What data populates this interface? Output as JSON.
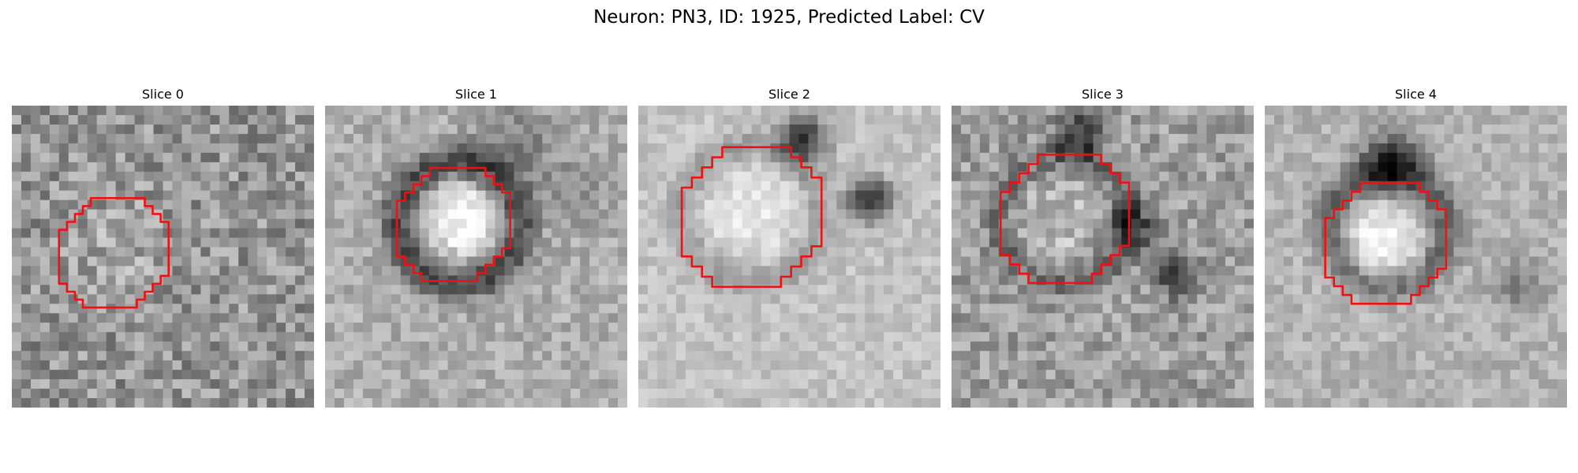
{
  "figure": {
    "title": "Neuron: PN3, ID: 1925, Predicted Label: CV"
  },
  "panels": [
    {
      "title": "Slice 0",
      "colormap": "gray",
      "contour_color": "#ee1111"
    },
    {
      "title": "Slice 1",
      "colormap": "gray",
      "contour_color": "#ee1111"
    },
    {
      "title": "Slice 2",
      "colormap": "gray",
      "contour_color": "#ee1111"
    },
    {
      "title": "Slice 3",
      "colormap": "gray",
      "contour_color": "#ee1111"
    },
    {
      "title": "Slice 4",
      "colormap": "gray",
      "contour_color": "#ee1111"
    }
  ]
}
